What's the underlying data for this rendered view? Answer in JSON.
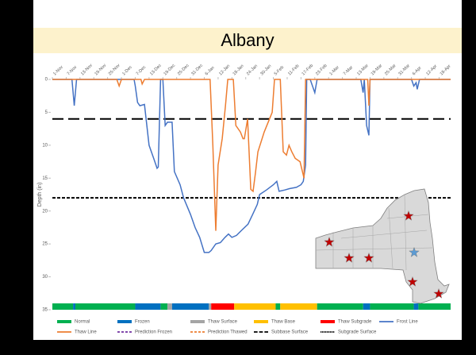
{
  "chart_data": {
    "type": "line",
    "title": "Albany",
    "y_label": "Depth (in)",
    "y_inverted": true,
    "grid": false,
    "xlim": [
      0,
      173
    ],
    "xticks": [
      {
        "value": 0,
        "label": "1-Nov"
      },
      {
        "value": 6,
        "label": "7-Nov"
      },
      {
        "value": 12,
        "label": "13-Nov"
      },
      {
        "value": 18,
        "label": "19-Nov"
      },
      {
        "value": 24,
        "label": "25-Nov"
      },
      {
        "value": 30,
        "label": "1-Dec"
      },
      {
        "value": 36,
        "label": "7-Dec"
      },
      {
        "value": 42,
        "label": "13-Dec"
      },
      {
        "value": 48,
        "label": "19-Dec"
      },
      {
        "value": 54,
        "label": "25-Dec"
      },
      {
        "value": 60,
        "label": "31-Dec"
      },
      {
        "value": 66,
        "label": "6-Jan"
      },
      {
        "value": 72,
        "label": "12-Jan"
      },
      {
        "value": 78,
        "label": "18-Jan"
      },
      {
        "value": 84,
        "label": "24-Jan"
      },
      {
        "value": 90,
        "label": "30-Jan"
      },
      {
        "value": 96,
        "label": "5-Feb"
      },
      {
        "value": 102,
        "label": "11-Feb"
      },
      {
        "value": 108,
        "label": "17-Feb"
      },
      {
        "value": 114,
        "label": "23-Feb"
      },
      {
        "value": 120,
        "label": "1-Mar"
      },
      {
        "value": 126,
        "label": "7-Mar"
      },
      {
        "value": 132,
        "label": "13-Mar"
      },
      {
        "value": 138,
        "label": "19-Mar"
      },
      {
        "value": 144,
        "label": "25-Mar"
      },
      {
        "value": 150,
        "label": "31-Mar"
      },
      {
        "value": 156,
        "label": "6-Apr"
      },
      {
        "value": 162,
        "label": "12-Apr"
      },
      {
        "value": 168,
        "label": "18-Apr"
      }
    ],
    "ylim": [
      0,
      35
    ],
    "yticks": [
      0,
      5,
      10,
      15,
      20,
      25,
      30,
      35
    ],
    "series": [
      {
        "name": "Frost Line",
        "color": "#4472c4",
        "x": [
          0,
          8.5,
          9.5,
          10.5,
          35.5,
          36,
          37,
          38,
          40,
          42,
          44,
          45.5,
          46,
          47,
          48,
          49,
          50,
          52,
          53,
          55.5,
          57,
          60,
          62,
          64,
          66,
          68,
          69,
          71,
          73,
          75,
          76.5,
          78,
          80,
          82,
          85,
          87,
          89,
          90,
          93,
          96,
          97.5,
          98.5,
          101,
          103,
          106,
          108,
          109,
          110,
          110.5,
          112,
          114,
          115,
          134,
          135,
          135.5,
          136.5,
          137.5,
          138,
          156,
          157,
          158,
          158.5,
          159.5,
          173
        ],
        "values": [
          0,
          0,
          4,
          0,
          0,
          1,
          3.5,
          4,
          3.8,
          10,
          12,
          13.5,
          13.3,
          0,
          0,
          7,
          6.5,
          6.5,
          14,
          16,
          18,
          20.5,
          22.5,
          24,
          26.3,
          26.3,
          26,
          25,
          24.8,
          24,
          23.5,
          24,
          23.7,
          23,
          22,
          20.5,
          19,
          17.5,
          16.8,
          16,
          15.5,
          17,
          16.8,
          16.6,
          16.4,
          16,
          15.5,
          13,
          0,
          0,
          2,
          0,
          0,
          2,
          0,
          7,
          8.5,
          0,
          0,
          1,
          0.5,
          1.5,
          0,
          0
        ]
      },
      {
        "name": "Thaw Line",
        "color": "#ed7d31",
        "x": [
          0,
          28,
          29,
          30,
          38.5,
          39,
          40,
          68.5,
          69.7,
          71,
          72,
          73.8,
          75.2,
          76.2,
          78.6,
          79.7,
          81.7,
          82.8,
          83.4,
          84.8,
          86.2,
          87.2,
          88.3,
          89.3,
          92,
          95.5,
          96.5,
          99,
          100.3,
          101.7,
          102.8,
          104,
          105.5,
          107.6,
          109.3,
          110,
          137,
          137.5,
          138,
          173
        ],
        "values": [
          0,
          0,
          1,
          0,
          0,
          0.7,
          0,
          0,
          10,
          23,
          13,
          9,
          4,
          0,
          0,
          7,
          8,
          9,
          9,
          6,
          16.7,
          17,
          14,
          11,
          8,
          5,
          0,
          0,
          11,
          11.5,
          10,
          11,
          12,
          12.5,
          15,
          0,
          0,
          4,
          0,
          0
        ]
      }
    ],
    "reference_lines": [
      {
        "name": "Subbase Surface",
        "value": 6,
        "color": "#000000",
        "dash": "14 6"
      },
      {
        "name": "Subgrade Surface",
        "value": 18,
        "color": "#000000",
        "dash": "4 2"
      }
    ],
    "predictions": [
      {
        "name": "Prediction Frozen",
        "color": "#7030a0"
      },
      {
        "name": "Prediction Thawed",
        "color": "#ed7d31"
      }
    ],
    "status_categories": [
      {
        "name": "Normal",
        "color": "#00b050"
      },
      {
        "name": "Frozen",
        "color": "#0070c0"
      },
      {
        "name": "Thaw Surface",
        "color": "#a5a5a5"
      },
      {
        "name": "Thaw Base",
        "color": "#ffc000"
      },
      {
        "name": "Thaw Subgrade",
        "color": "#ff0000"
      }
    ],
    "status_bar": [
      {
        "from": 0,
        "to": 9,
        "status": 0
      },
      {
        "from": 9,
        "to": 10,
        "status": 1
      },
      {
        "from": 10,
        "to": 36,
        "status": 0
      },
      {
        "from": 36,
        "to": 47,
        "status": 1
      },
      {
        "from": 47,
        "to": 50,
        "status": 0
      },
      {
        "from": 50,
        "to": 52,
        "status": 2
      },
      {
        "from": 52,
        "to": 68,
        "status": 1
      },
      {
        "from": 68,
        "to": 69,
        "status": 2
      },
      {
        "from": 69,
        "to": 79,
        "status": 4
      },
      {
        "from": 79,
        "to": 97,
        "status": 3
      },
      {
        "from": 97,
        "to": 99,
        "status": 0
      },
      {
        "from": 99,
        "to": 115,
        "status": 3
      },
      {
        "from": 115,
        "to": 135,
        "status": 0
      },
      {
        "from": 135,
        "to": 138,
        "status": 1
      },
      {
        "from": 138,
        "to": 157,
        "status": 0
      },
      {
        "from": 157,
        "to": 159,
        "status": 1
      },
      {
        "from": 159,
        "to": 173,
        "status": 0
      }
    ]
  }
}
